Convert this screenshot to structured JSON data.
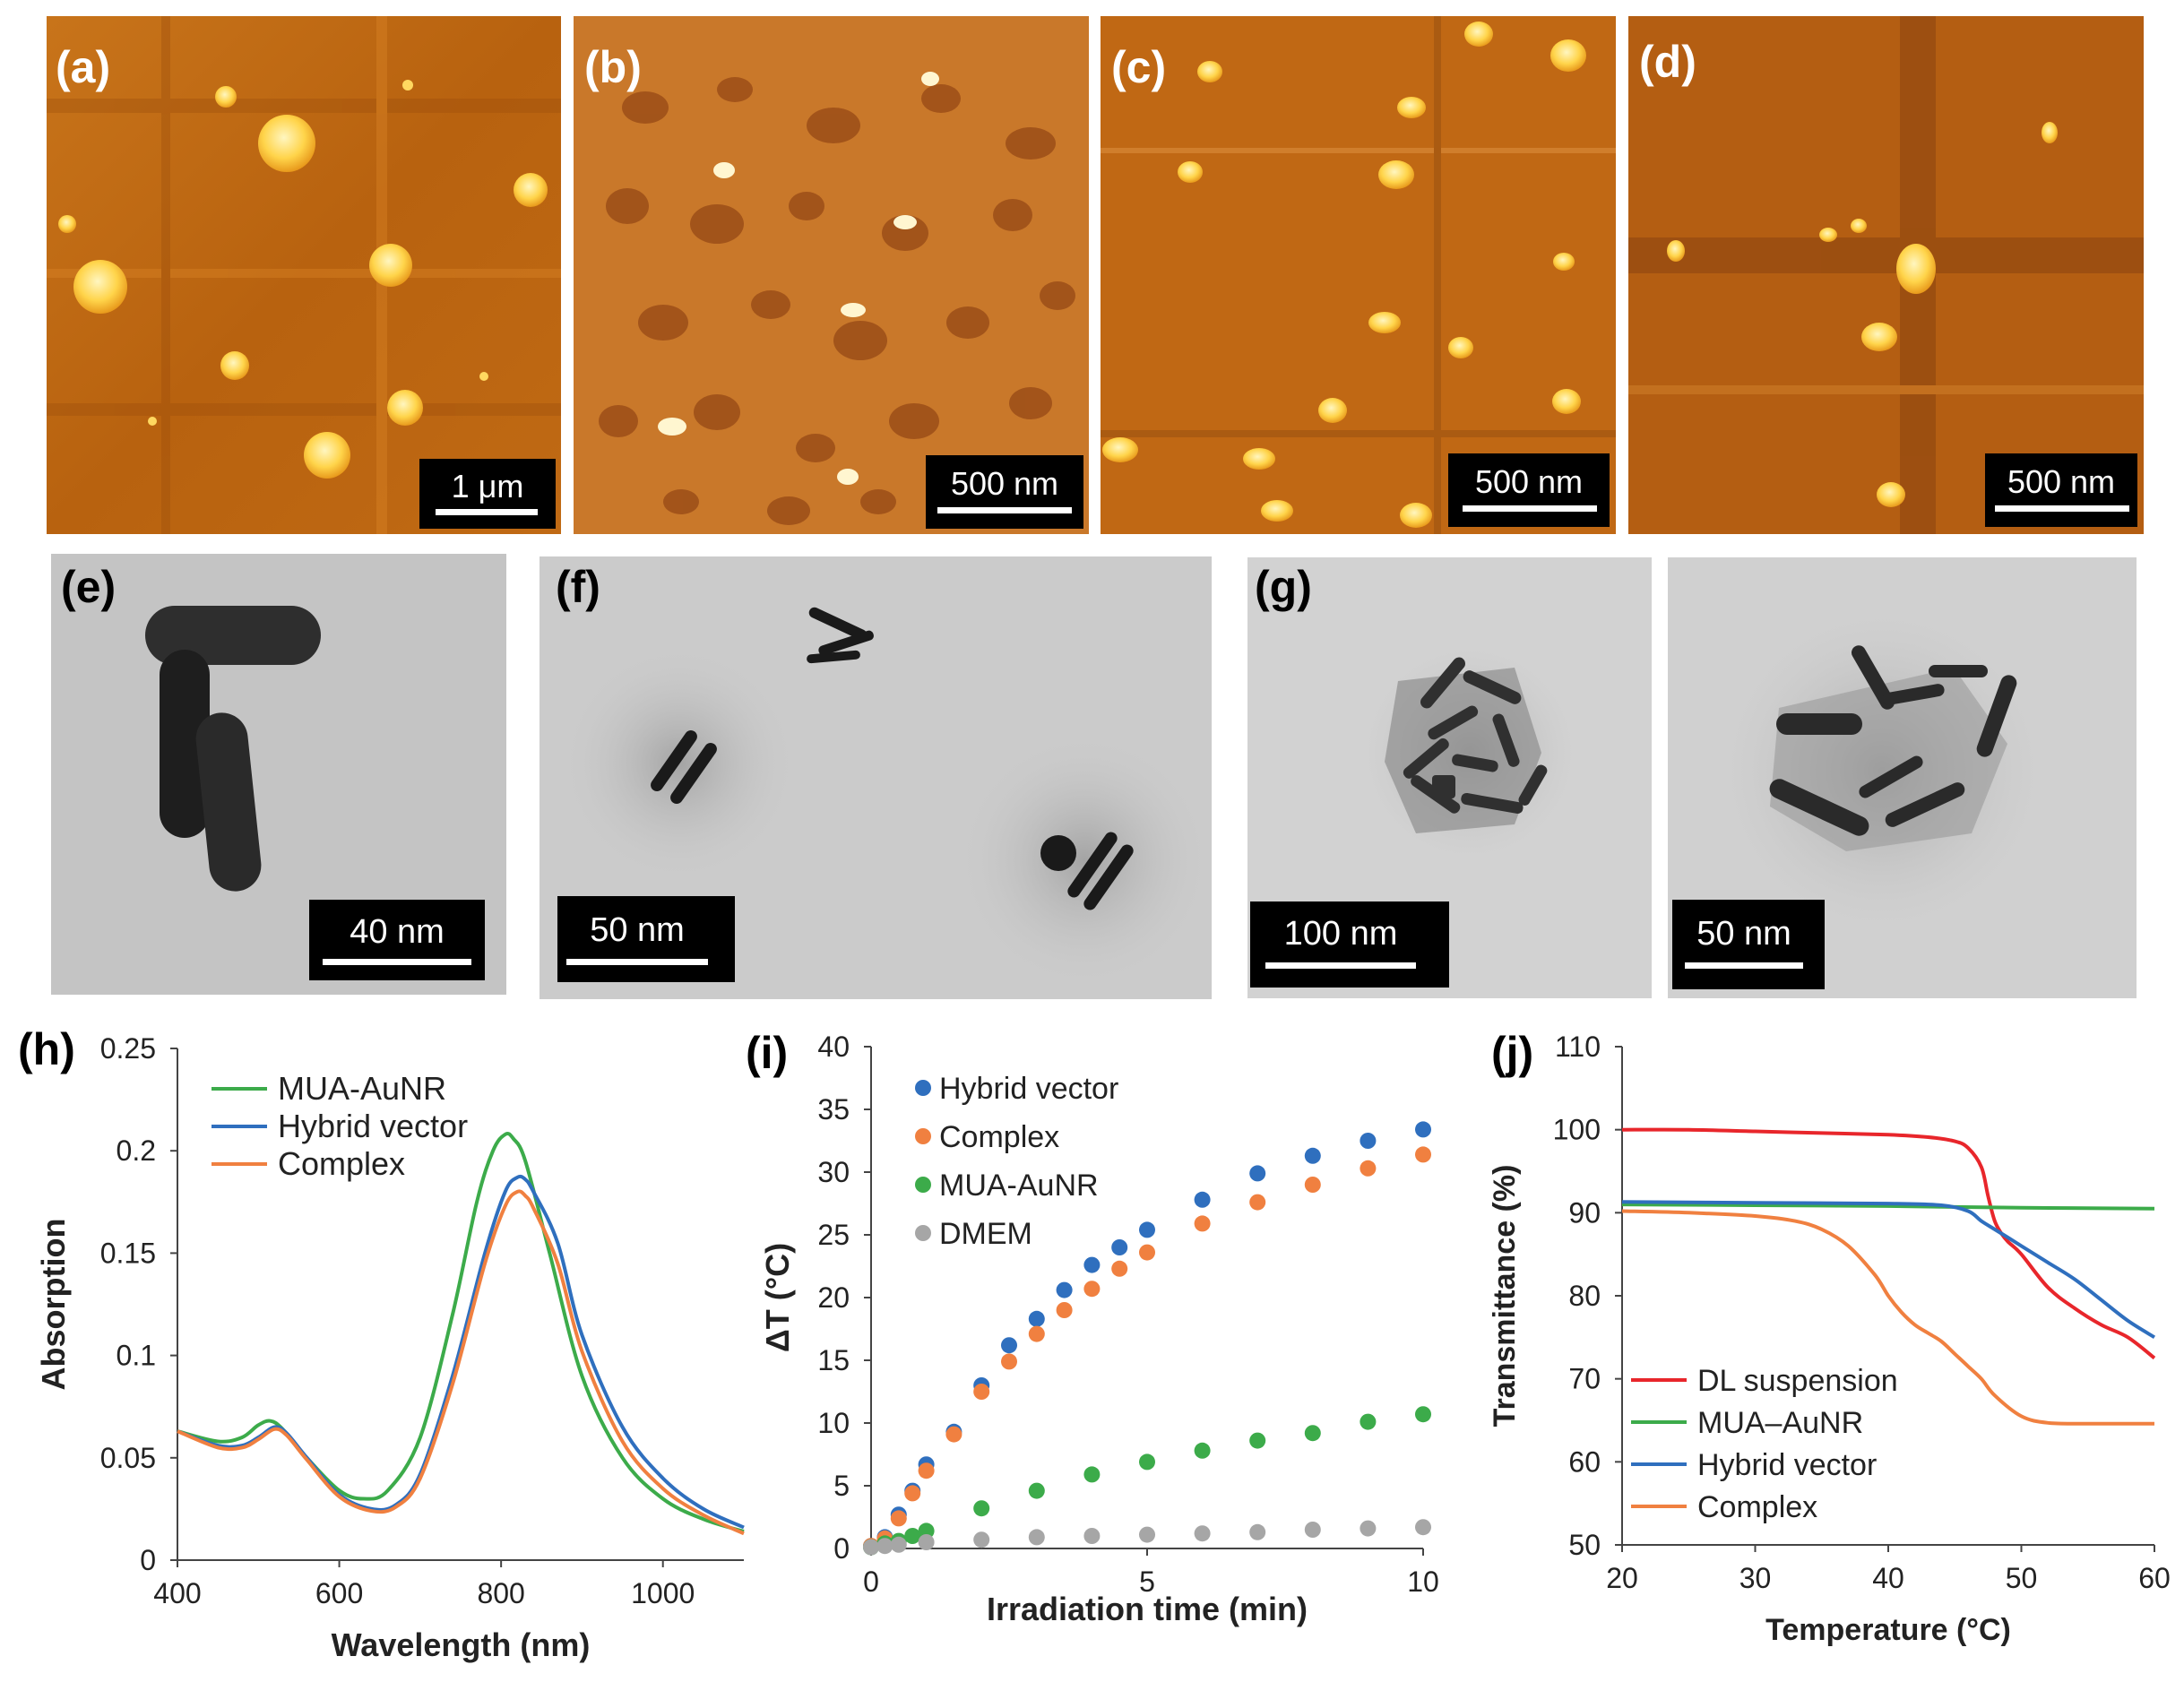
{
  "panels": {
    "a": {
      "label": "(a)",
      "scalebar": "1 μm"
    },
    "b": {
      "label": "(b)",
      "scalebar": "500 nm"
    },
    "c": {
      "label": "(c)",
      "scalebar": "500 nm"
    },
    "d": {
      "label": "(d)",
      "scalebar": "500 nm"
    },
    "e": {
      "label": "(e)",
      "scalebar": "40 nm"
    },
    "f": {
      "label": "(f)",
      "scalebar": "50 nm"
    },
    "g": {
      "label": "(g)",
      "scalebar": "100 nm"
    },
    "g2": {
      "label": "",
      "scalebar": "50 nm"
    }
  },
  "colors": {
    "afm_bg": "#c16a12",
    "afm_light": "#ffd860",
    "afm_dark": "#8a4810",
    "tem_bg": "#c9c9c9",
    "blue": "#2f6fbe",
    "orange": "#f08040",
    "green": "#3cab4a",
    "red": "#e8262b",
    "gray": "#a6a6a6"
  },
  "chart_data": [
    {
      "id": "h",
      "panel_label": "(h)",
      "type": "line",
      "title": "",
      "xlabel": "Wavelength (nm)",
      "ylabel": "Absorption",
      "xlim": [
        400,
        1100
      ],
      "ylim": [
        0,
        0.25
      ],
      "xticks": [
        400,
        600,
        800,
        1000
      ],
      "xtick_labels": [
        "400",
        "600",
        "800",
        "1000"
      ],
      "yticks": [
        0,
        0.05,
        0.1,
        0.15,
        0.2,
        0.25
      ],
      "ytick_labels": [
        "0",
        "0.05",
        "0.1",
        "0.15",
        "0.2",
        "0.25"
      ],
      "legend_position": "top-left",
      "series": [
        {
          "name": "MUA-AuNR",
          "color": "#3cab4a",
          "x": [
            400,
            450,
            480,
            500,
            515,
            530,
            560,
            600,
            630,
            660,
            700,
            740,
            770,
            790,
            805,
            815,
            830,
            860,
            900,
            950,
            1000,
            1050,
            1100
          ],
          "y": [
            0.063,
            0.058,
            0.06,
            0.066,
            0.068,
            0.064,
            0.05,
            0.034,
            0.03,
            0.034,
            0.06,
            0.12,
            0.175,
            0.2,
            0.208,
            0.206,
            0.195,
            0.15,
            0.09,
            0.05,
            0.03,
            0.02,
            0.014
          ]
        },
        {
          "name": "Hybrid vector",
          "color": "#2f6fbe",
          "x": [
            400,
            450,
            480,
            500,
            520,
            535,
            560,
            600,
            640,
            670,
            700,
            740,
            780,
            805,
            820,
            830,
            840,
            870,
            900,
            950,
            1000,
            1050,
            1100
          ],
          "y": [
            0.063,
            0.056,
            0.056,
            0.06,
            0.065,
            0.062,
            0.05,
            0.032,
            0.025,
            0.027,
            0.042,
            0.09,
            0.15,
            0.18,
            0.187,
            0.186,
            0.18,
            0.155,
            0.11,
            0.065,
            0.04,
            0.025,
            0.016
          ]
        },
        {
          "name": "Complex",
          "color": "#f08040",
          "x": [
            400,
            450,
            480,
            500,
            520,
            535,
            560,
            600,
            640,
            670,
            700,
            740,
            780,
            805,
            820,
            830,
            840,
            870,
            900,
            950,
            1000,
            1050,
            1100
          ],
          "y": [
            0.063,
            0.055,
            0.055,
            0.059,
            0.064,
            0.061,
            0.049,
            0.031,
            0.024,
            0.026,
            0.04,
            0.086,
            0.145,
            0.173,
            0.18,
            0.178,
            0.172,
            0.145,
            0.102,
            0.058,
            0.035,
            0.022,
            0.013
          ]
        }
      ]
    },
    {
      "id": "i",
      "panel_label": "(i)",
      "type": "scatter",
      "title": "",
      "xlabel": "Irradiation time (min)",
      "ylabel": "ΔT (°C)",
      "xlim": [
        0,
        10
      ],
      "ylim": [
        0,
        40
      ],
      "xticks": [
        0,
        5,
        10
      ],
      "xtick_labels": [
        "0",
        "5",
        "10"
      ],
      "yticks": [
        0,
        5,
        10,
        15,
        20,
        25,
        30,
        35,
        40
      ],
      "ytick_labels": [
        "0",
        "5",
        "10",
        "15",
        "20",
        "25",
        "30",
        "35",
        "40"
      ],
      "legend_position": "top-left",
      "series": [
        {
          "name": "Hybrid vector",
          "color": "#2f6fbe",
          "x": [
            0,
            0.25,
            0.5,
            0.75,
            1,
            1.5,
            2,
            2.5,
            3,
            3.5,
            4,
            4.5,
            5,
            6,
            7,
            8,
            9,
            10
          ],
          "y": [
            0.2,
            0.9,
            2.7,
            4.6,
            6.7,
            9.3,
            13.0,
            16.2,
            18.3,
            20.6,
            22.6,
            24.0,
            25.4,
            27.8,
            29.9,
            31.3,
            32.5,
            33.4
          ]
        },
        {
          "name": "Complex",
          "color": "#f08040",
          "x": [
            0,
            0.25,
            0.5,
            0.75,
            1,
            1.5,
            2,
            2.5,
            3,
            3.5,
            4,
            4.5,
            5,
            6,
            7,
            8,
            9,
            10
          ],
          "y": [
            0.2,
            0.8,
            2.4,
            4.4,
            6.2,
            9.1,
            12.5,
            14.9,
            17.1,
            19.0,
            20.7,
            22.3,
            23.6,
            25.9,
            27.6,
            29.0,
            30.3,
            31.4
          ]
        },
        {
          "name": "MUA-AuNR",
          "color": "#3cab4a",
          "x": [
            0,
            0.25,
            0.5,
            0.75,
            1,
            2,
            3,
            4,
            5,
            6,
            7,
            8,
            9,
            10
          ],
          "y": [
            0.1,
            0.4,
            0.6,
            1.0,
            1.4,
            3.2,
            4.6,
            5.9,
            6.9,
            7.8,
            8.6,
            9.2,
            10.1,
            10.7
          ]
        },
        {
          "name": "DMEM",
          "color": "#a6a6a6",
          "x": [
            0,
            0.25,
            0.5,
            1,
            2,
            3,
            4,
            5,
            6,
            7,
            8,
            9,
            10
          ],
          "y": [
            0.1,
            0.2,
            0.3,
            0.5,
            0.7,
            0.9,
            1.0,
            1.1,
            1.2,
            1.3,
            1.5,
            1.6,
            1.7
          ]
        }
      ]
    },
    {
      "id": "j",
      "panel_label": "(j)",
      "type": "line",
      "title": "",
      "xlabel": "Temperature (°C)",
      "ylabel": "Transmittance (%)",
      "xlim": [
        20,
        60
      ],
      "ylim": [
        50,
        110
      ],
      "xticks": [
        20,
        30,
        40,
        50,
        60
      ],
      "xtick_labels": [
        "20",
        "30",
        "40",
        "50",
        "60"
      ],
      "yticks": [
        50,
        60,
        70,
        80,
        90,
        100,
        110
      ],
      "ytick_labels": [
        "50",
        "60",
        "70",
        "80",
        "90",
        "100",
        "110"
      ],
      "legend_position": "bottom-left",
      "series": [
        {
          "name": "DL suspension",
          "color": "#e8262b",
          "x": [
            20,
            25,
            30,
            35,
            40,
            43,
            45,
            46,
            47,
            47.5,
            48,
            48.5,
            49,
            50,
            52,
            54,
            56,
            58,
            60
          ],
          "y": [
            100,
            100,
            99.8,
            99.6,
            99.4,
            99.1,
            98.6,
            97.8,
            95.5,
            92,
            89,
            87.5,
            86.5,
            85,
            81,
            78.5,
            76.5,
            75,
            72.5
          ]
        },
        {
          "name": "MUA–AuNR",
          "color": "#3cab4a",
          "x": [
            20,
            30,
            40,
            50,
            60
          ],
          "y": [
            91,
            90.9,
            90.8,
            90.6,
            90.5
          ]
        },
        {
          "name": "Hybrid vector",
          "color": "#2f6fbe",
          "x": [
            20,
            30,
            40,
            44,
            46,
            47,
            48,
            49,
            50,
            52,
            54,
            56,
            58,
            60
          ],
          "y": [
            91.3,
            91.2,
            91.1,
            90.9,
            90.2,
            89,
            88,
            87,
            86,
            84,
            82,
            79.5,
            77,
            75
          ]
        },
        {
          "name": "Complex",
          "color": "#f08040",
          "x": [
            20,
            25,
            30,
            33,
            35,
            37,
            39,
            40,
            41,
            42,
            43,
            44,
            45,
            46,
            47,
            48,
            50,
            52,
            55,
            60
          ],
          "y": [
            90.2,
            90,
            89.6,
            89,
            88,
            86,
            82.5,
            80,
            78,
            76.5,
            75.5,
            74.5,
            73,
            71.5,
            70,
            68,
            65.5,
            64.7,
            64.6,
            64.6
          ]
        }
      ]
    }
  ]
}
